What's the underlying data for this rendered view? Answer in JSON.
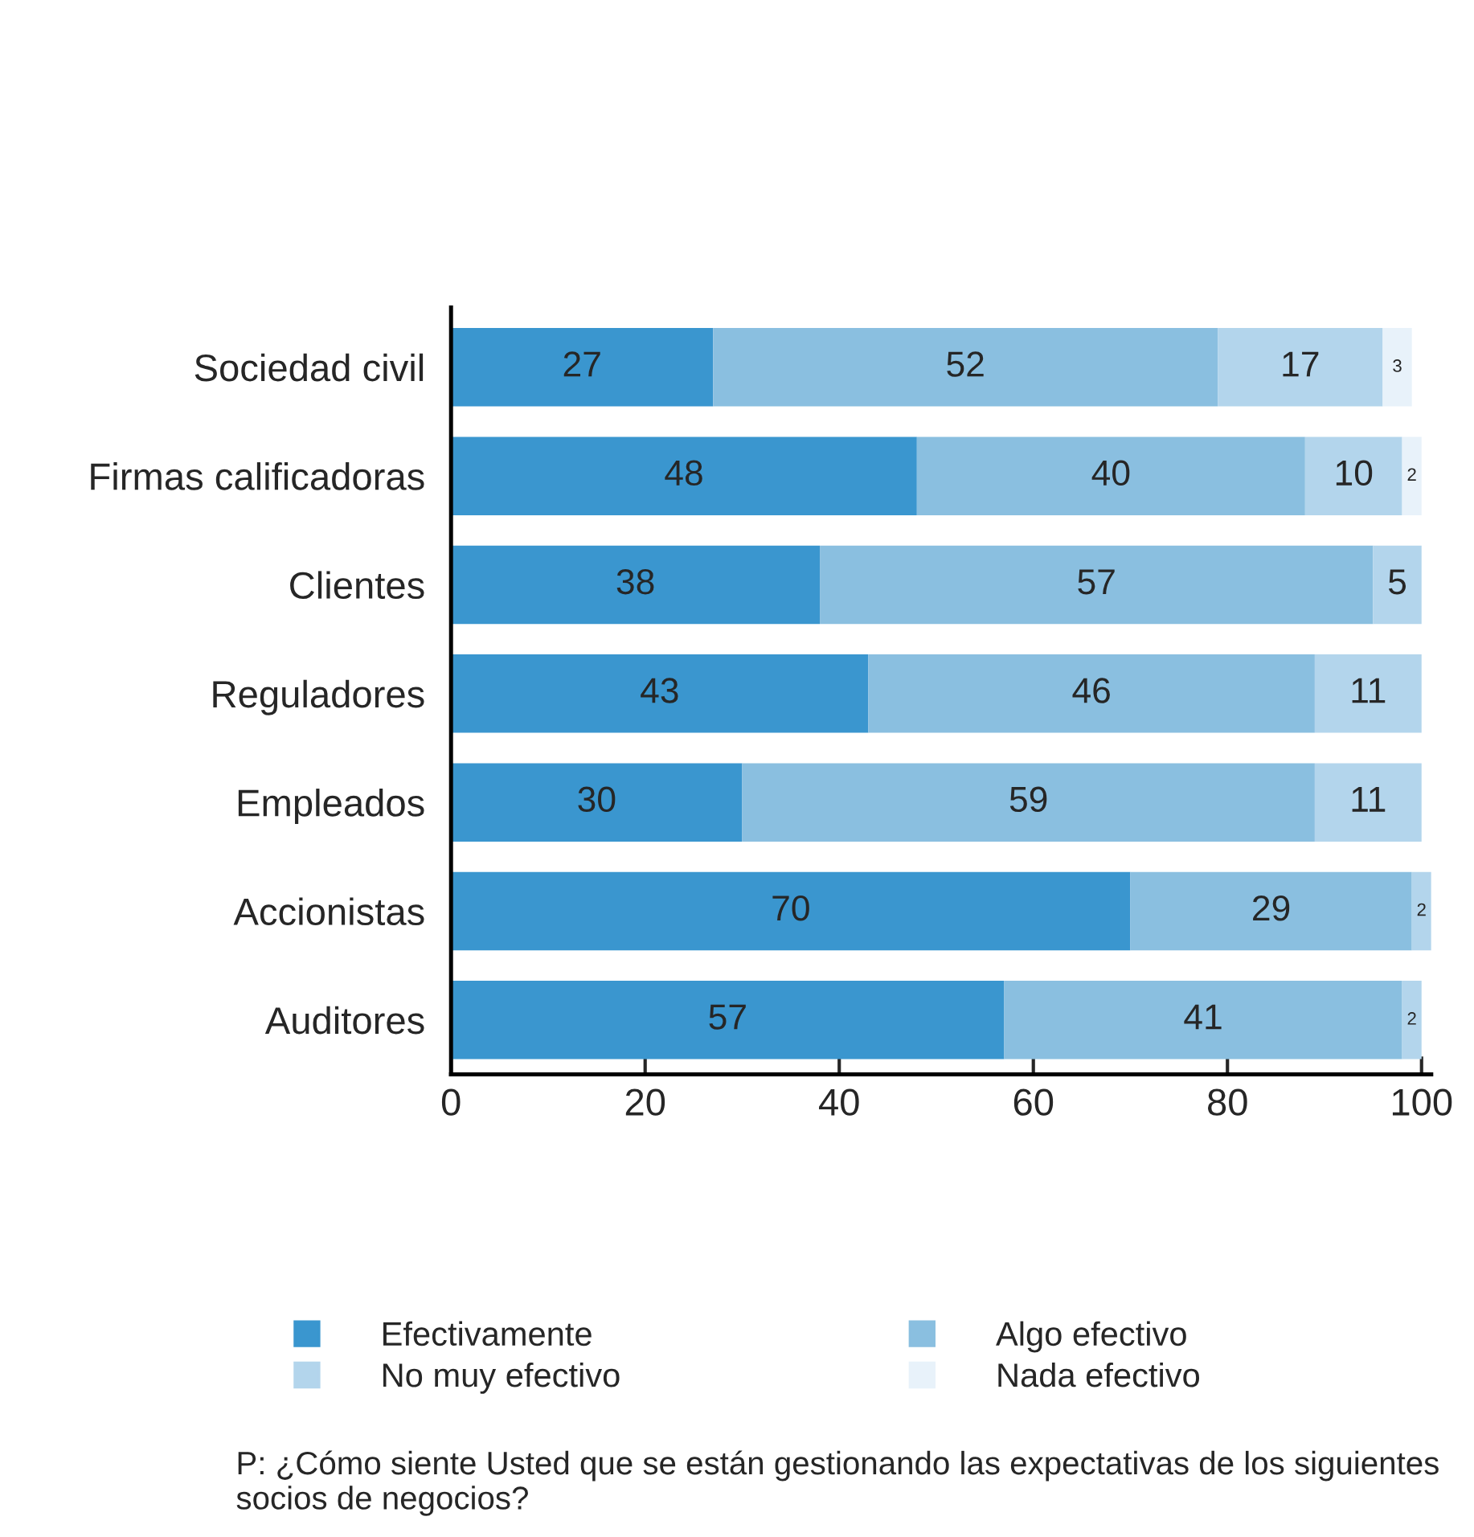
{
  "chart_data": {
    "type": "bar",
    "orientation": "horizontal",
    "stacked": true,
    "data_labels": true,
    "grid": false,
    "legend": "bottom",
    "categories": [
      "Sociedad civil",
      "Firmas calificadoras",
      "Clientes",
      "Reguladores",
      "Empleados",
      "Accionistas",
      "Auditores"
    ],
    "series": [
      {
        "name": "Efectivamente",
        "color": "#3a96cf",
        "values": [
          27,
          48,
          38,
          43,
          30,
          70,
          57
        ]
      },
      {
        "name": "Algo efectivo",
        "color": "#8abfe0",
        "values": [
          52,
          40,
          57,
          46,
          59,
          29,
          41
        ]
      },
      {
        "name": "No muy efectivo",
        "color": "#b3d5ec",
        "values": [
          17,
          10,
          5,
          11,
          11,
          2,
          2
        ]
      },
      {
        "name": "Nada efectivo",
        "color": "#e8f2fa",
        "values": [
          3,
          2,
          null,
          null,
          null,
          null,
          null
        ]
      }
    ],
    "xlim": [
      0,
      101
    ],
    "xticks": [
      0,
      20,
      40,
      60,
      80,
      100
    ],
    "annotations": [
      "P: ¿Cómo siente Usted que se están gestionando las expectativas de los siguientes socios de negocios?"
    ]
  }
}
